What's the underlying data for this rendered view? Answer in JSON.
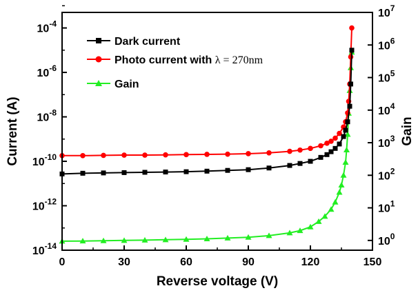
{
  "chart_data": {
    "type": "line",
    "xlabel": "Reverse voltage (V)",
    "ylabel_left": "Current (A)",
    "ylabel_right": "Gain",
    "xlim": [
      0,
      150
    ],
    "ylim_left_log10": [
      -14,
      -3.3
    ],
    "ylim_right_log10": [
      -0.3,
      7
    ],
    "x_ticks": [
      0,
      30,
      60,
      90,
      120,
      150
    ],
    "x_tick_labels": [
      "0",
      "30",
      "60",
      "90",
      "120",
      "150"
    ],
    "y_left_tick_exponents": [
      -14,
      -12,
      -10,
      -8,
      -6,
      -4
    ],
    "y_left_tick_base": "10",
    "y_left_tick_exp_labels": [
      "-14",
      "-12",
      "-10",
      "-8",
      "-6",
      "-4"
    ],
    "y_right_tick_exponents": [
      0,
      1,
      2,
      3,
      4,
      5,
      6,
      7
    ],
    "y_right_tick_base": "10",
    "y_right_tick_exp_labels": [
      "0",
      "1",
      "2",
      "3",
      "4",
      "5",
      "6",
      "7"
    ],
    "legend": {
      "dark": "Dark current",
      "photo_prefix": "Photo current with ",
      "photo_lambda": "λ = 270nm",
      "gain": "Gain"
    },
    "series": [
      {
        "name": "Dark current",
        "axis": "left",
        "color": "#000000",
        "marker": "square",
        "x": [
          0,
          10,
          20,
          30,
          40,
          50,
          60,
          70,
          80,
          90,
          100,
          110,
          115,
          120,
          125,
          128,
          130,
          132,
          134,
          136,
          137,
          138,
          139,
          139.5,
          140
        ],
        "y": [
          2.7e-11,
          2.9e-11,
          3e-11,
          3.1e-11,
          3.2e-11,
          3.3e-11,
          3.4e-11,
          3.6e-11,
          3.9e-11,
          4.2e-11,
          5e-11,
          6.5e-11,
          8e-11,
          1e-10,
          1.5e-10,
          2e-10,
          2.7e-10,
          3.8e-10,
          6e-10,
          1.3e-09,
          2.5e-09,
          6e-09,
          3e-08,
          3e-07,
          1e-05
        ]
      },
      {
        "name": "Photo current with λ = 270nm",
        "axis": "left",
        "color": "#ff0000",
        "marker": "circle",
        "x": [
          0,
          10,
          20,
          30,
          40,
          50,
          60,
          70,
          80,
          90,
          100,
          110,
          115,
          120,
          125,
          128,
          130,
          132,
          134,
          136,
          137,
          138,
          138.5,
          139,
          139.5,
          140
        ],
        "y": [
          1.8e-10,
          1.8e-10,
          1.85e-10,
          1.9e-10,
          1.9e-10,
          1.95e-10,
          2e-10,
          2.05e-10,
          2.1e-10,
          2.2e-10,
          2.4e-10,
          2.8e-10,
          3.2e-10,
          3.8e-10,
          5e-10,
          6.5e-10,
          8e-10,
          1.1e-09,
          1.8e-09,
          3.5e-09,
          6e-09,
          1.5e-08,
          5e-08,
          3e-07,
          5e-06,
          0.0001
        ]
      },
      {
        "name": "Gain",
        "axis": "right",
        "color": "#22ee22",
        "marker": "triangle",
        "x": [
          0,
          10,
          20,
          30,
          40,
          50,
          60,
          70,
          80,
          90,
          100,
          110,
          115,
          120,
          124,
          127,
          130,
          132,
          134,
          135,
          136,
          137,
          137.5,
          138,
          138.5,
          139,
          139.5,
          140
        ],
        "y": [
          0.95,
          0.96,
          0.98,
          1.0,
          1.02,
          1.05,
          1.08,
          1.12,
          1.18,
          1.25,
          1.4,
          1.7,
          2.0,
          2.6,
          3.8,
          5.5,
          9.0,
          15,
          30,
          50,
          100,
          250,
          600,
          1800,
          8000,
          40000,
          200000,
          600000
        ]
      }
    ]
  }
}
